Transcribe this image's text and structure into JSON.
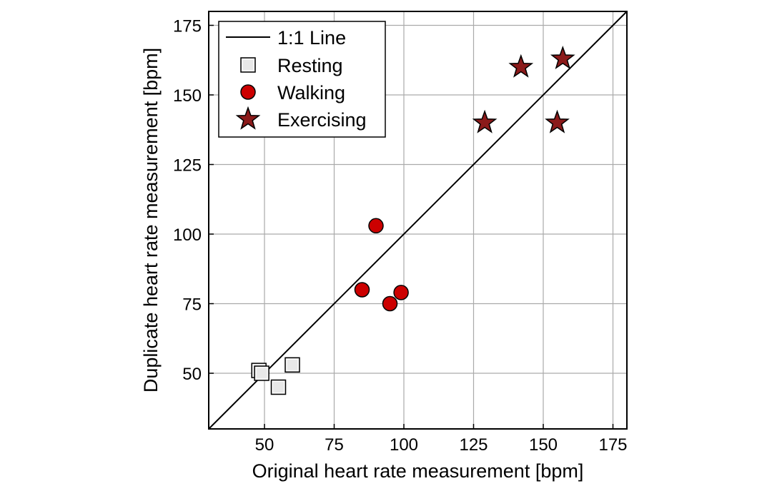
{
  "chart_data": {
    "type": "scatter",
    "xlabel": "Original heart rate measurement [bpm]",
    "ylabel": "Duplicate heart rate measurement [bpm]",
    "xlim": [
      30,
      180
    ],
    "ylim": [
      30,
      180
    ],
    "xticks": [
      50,
      75,
      100,
      125,
      150,
      175
    ],
    "yticks": [
      50,
      75,
      100,
      125,
      150,
      175
    ],
    "grid": true,
    "legend_position": "top-left",
    "reference_line": {
      "name": "1:1 Line",
      "slope": 1,
      "intercept": 0,
      "color": "#000000"
    },
    "series": [
      {
        "name": "Resting",
        "marker": "square",
        "color": "#e8e8e8",
        "points": [
          [
            48,
            51
          ],
          [
            49,
            50
          ],
          [
            55,
            45
          ],
          [
            60,
            53
          ]
        ]
      },
      {
        "name": "Walking",
        "marker": "circle",
        "color": "#cc0000",
        "points": [
          [
            85,
            80
          ],
          [
            90,
            103
          ],
          [
            95,
            75
          ],
          [
            99,
            79
          ]
        ]
      },
      {
        "name": "Exercising",
        "marker": "star",
        "color": "#8b1a1a",
        "points": [
          [
            129,
            140
          ],
          [
            142,
            160
          ],
          [
            155,
            140
          ],
          [
            157,
            163
          ]
        ]
      }
    ]
  }
}
